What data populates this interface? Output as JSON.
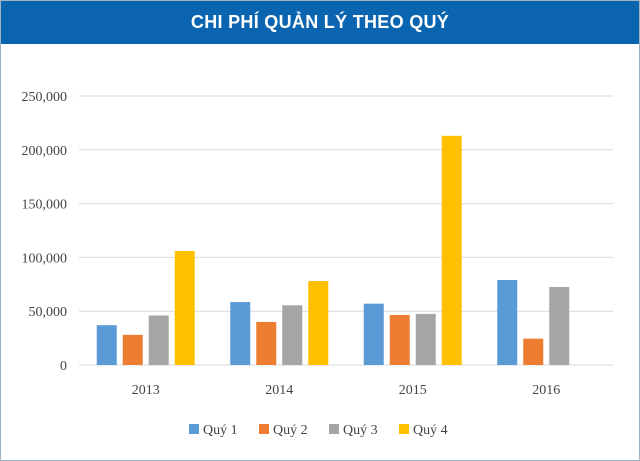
{
  "chart_data": {
    "type": "bar",
    "title": "CHI PHÍ QUẢN LÝ THEO QUÝ",
    "categories": [
      "2013",
      "2014",
      "2015",
      "2016"
    ],
    "series": [
      {
        "name": "Quý 1",
        "color": "#5b9bd5",
        "values": [
          37000,
          58500,
          57000,
          79000
        ]
      },
      {
        "name": "Quý 2",
        "color": "#ed7d31",
        "values": [
          28000,
          40000,
          46500,
          24500
        ]
      },
      {
        "name": "Quý 3",
        "color": "#a5a5a5",
        "values": [
          46000,
          55500,
          47500,
          72500
        ]
      },
      {
        "name": "Quý 4",
        "color": "#ffc000",
        "values": [
          106000,
          78000,
          213000,
          null
        ]
      }
    ],
    "y_ticks": [
      "0",
      "50,000",
      "100,000",
      "150,000",
      "200,000",
      "250,000"
    ],
    "ylim": [
      0,
      250000
    ],
    "grid": true,
    "legend_position": "bottom"
  }
}
